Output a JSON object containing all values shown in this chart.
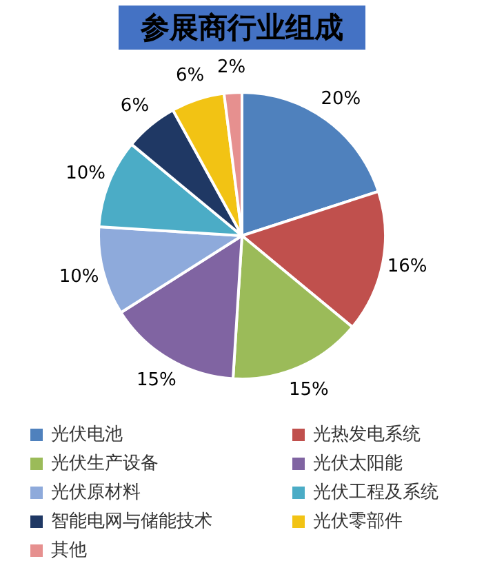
{
  "chart_data": {
    "type": "pie",
    "title": "参展商行业组成",
    "categories": [
      "光伏电池",
      "光热发电系统",
      "光伏生产设备",
      "光伏太阳能",
      "光伏原材料",
      "光伏工程及系统",
      "智能电网与储能技术",
      "光伏零部件",
      "其他"
    ],
    "values": [
      20,
      16,
      15,
      15,
      10,
      10,
      6,
      6,
      2
    ],
    "value_labels": [
      "20%",
      "16%",
      "15%",
      "15%",
      "10%",
      "10%",
      "6%",
      "6%",
      "2%"
    ],
    "colors": [
      "#4f81bd",
      "#c0504d",
      "#9bbb59",
      "#8064a2",
      "#8eaadb",
      "#4bacc6",
      "#1f3864",
      "#f2c314",
      "#e6908f"
    ],
    "legend": "bottom"
  }
}
